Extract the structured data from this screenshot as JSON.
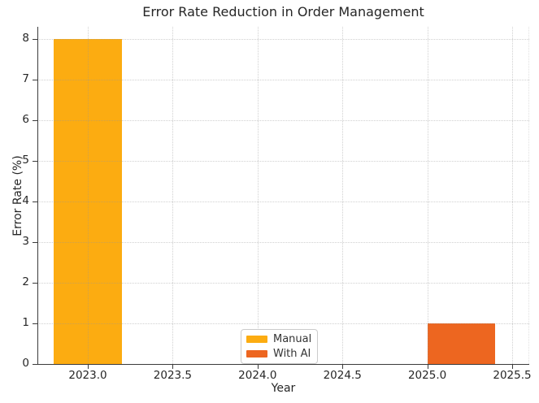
{
  "chart_data": {
    "type": "bar",
    "title": "Error Rate Reduction in Order Management",
    "xlabel": "Year",
    "ylabel": "Error Rate (%)",
    "xlim": [
      2022.7,
      2025.6
    ],
    "ylim": [
      0,
      8
    ],
    "grid": true,
    "grid_style": "dotted",
    "legend_position": "lower center",
    "x_ticks": [
      2023.0,
      2023.5,
      2024.0,
      2024.5,
      2025.0,
      2025.5
    ],
    "x_tick_labels": [
      "2023.0",
      "2023.5",
      "2024.0",
      "2024.5",
      "2025.0",
      "2025.5"
    ],
    "y_ticks": [
      0,
      1,
      2,
      3,
      4,
      5,
      6,
      7,
      8
    ],
    "y_tick_labels": [
      "0",
      "1",
      "2",
      "3",
      "4",
      "5",
      "6",
      "7",
      "8"
    ],
    "series": [
      {
        "name": "Manual",
        "color": "#FCAC11",
        "bars": [
          {
            "x_center": 2023.0,
            "bar_width_years": 0.4,
            "value": 8
          }
        ]
      },
      {
        "name": "With AI",
        "color": "#ED6620",
        "bars": [
          {
            "x_center": 2025.2,
            "bar_width_years": 0.4,
            "value": 1
          }
        ]
      }
    ]
  },
  "legend": {
    "items": [
      {
        "label": "Manual",
        "color": "#FCAC11"
      },
      {
        "label": "With AI",
        "color": "#ED6620"
      }
    ]
  }
}
